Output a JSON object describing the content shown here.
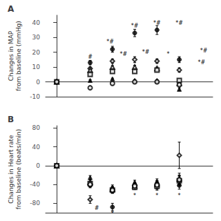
{
  "chart_data": [
    {
      "type": "scatter",
      "title": "A",
      "ylabel": "Changes in MAP\nfrom baseline (mmHg)",
      "x": [
        0,
        1.5,
        2.5,
        3.5,
        4.5,
        5.5
      ],
      "xlim": [
        -0.5,
        7.0
      ],
      "xticks": [],
      "ylim": [
        -10,
        45
      ],
      "yticks": [
        -10,
        0,
        10,
        20,
        30,
        40
      ],
      "tick_labels": "y",
      "grid": false,
      "series": [
        {
          "marker": "filled_circle",
          "color": "black",
          "values": [
            0,
            13,
            22,
            33,
            35,
            15
          ],
          "yerr": [
            0.5,
            1.5,
            2,
            2.5,
            3,
            2
          ]
        },
        {
          "marker": "open_diamond",
          "color": "black",
          "values": [
            0,
            9,
            14,
            15,
            14,
            8
          ],
          "yerr": [
            0.3,
            1,
            1.5,
            2,
            1.5,
            1.5
          ]
        },
        {
          "marker": "open_triangle",
          "color": "black",
          "values": [
            0,
            8,
            10,
            10,
            9,
            -1
          ],
          "yerr": [
            0.3,
            1,
            1,
            1.2,
            1,
            1.5
          ]
        },
        {
          "marker": "open_square",
          "color": "black",
          "values": [
            0,
            5,
            7,
            7,
            8,
            1
          ],
          "yerr": [
            0.3,
            0.8,
            1,
            1,
            1,
            1
          ]
        },
        {
          "marker": "filled_triangle",
          "color": "black",
          "values": [
            0,
            1,
            2,
            1,
            1,
            -5
          ],
          "yerr": [
            0.3,
            0.5,
            0.5,
            0.5,
            0.5,
            1
          ]
        },
        {
          "marker": "open_circle",
          "color": "black",
          "values": [
            0,
            -4,
            -1,
            0,
            0,
            -2
          ],
          "yerr": [
            0.3,
            1,
            1,
            1,
            1,
            1
          ]
        }
      ],
      "annotations": [
        {
          "x": 1.5,
          "y": 15,
          "text": "#"
        },
        {
          "x": 2.4,
          "y": 25,
          "text": "*#"
        },
        {
          "x": 3.5,
          "y": 36,
          "text": "*#"
        },
        {
          "x": 4.5,
          "y": 38,
          "text": "*#"
        },
        {
          "x": 5.5,
          "y": 38,
          "text": "*#"
        },
        {
          "x": 6.6,
          "y": 19,
          "text": "*#"
        },
        {
          "x": 3.0,
          "y": 17,
          "text": "*#"
        },
        {
          "x": 4.0,
          "y": 18,
          "text": "*#"
        },
        {
          "x": 5.0,
          "y": 17,
          "text": "*"
        },
        {
          "x": 6.5,
          "y": 11,
          "text": "*#"
        }
      ]
    },
    {
      "type": "scatter",
      "title": "B",
      "ylabel": "Changes in Heart rate\nfrom baseline (beats/min)",
      "x": [
        0,
        1.5,
        2.5,
        3.5,
        4.5,
        5.5
      ],
      "xlim": [
        -0.5,
        7.0
      ],
      "xticks": [],
      "ylim": [
        -100,
        85
      ],
      "yticks": [
        -80,
        -40,
        0,
        40,
        80
      ],
      "tick_labels": "y",
      "grid": false,
      "series": [
        {
          "marker": "filled_circle",
          "color": "black",
          "values": [
            0,
            -42,
            -88,
            -43,
            -42,
            -42
          ],
          "yerr": [
            0.5,
            5,
            8,
            6,
            6,
            8
          ]
        },
        {
          "marker": "open_diamond",
          "color": "black",
          "values": [
            0,
            -72,
            -52,
            -42,
            -42,
            22
          ],
          "yerr": [
            0.5,
            8,
            7,
            6,
            10,
            28
          ]
        },
        {
          "marker": "open_triangle",
          "color": "black",
          "values": [
            0,
            -35,
            -50,
            -43,
            -40,
            -28
          ],
          "yerr": [
            0.5,
            5,
            6,
            5,
            8,
            12
          ]
        },
        {
          "marker": "open_square",
          "color": "black",
          "values": [
            0,
            -38,
            -52,
            -46,
            -44,
            -32
          ],
          "yerr": [
            0.5,
            5,
            6,
            5,
            6,
            10
          ]
        },
        {
          "marker": "filled_triangle",
          "color": "black",
          "values": [
            0,
            -25,
            -46,
            -35,
            -33,
            -30
          ],
          "yerr": [
            0.5,
            4,
            5,
            4,
            5,
            8
          ]
        },
        {
          "marker": "open_circle",
          "color": "black",
          "values": [
            0,
            -40,
            -52,
            -43,
            -41,
            -30
          ],
          "yerr": [
            0.5,
            5,
            6,
            5,
            6,
            10
          ]
        }
      ],
      "annotations": [
        {
          "x": 1.8,
          "y": -84,
          "text": "#"
        },
        {
          "x": 2.5,
          "y": -96,
          "text": "*"
        },
        {
          "x": 3.5,
          "y": -58,
          "text": "*"
        },
        {
          "x": 4.5,
          "y": -58,
          "text": "*"
        },
        {
          "x": 5.5,
          "y": -58,
          "text": "*"
        }
      ]
    }
  ]
}
